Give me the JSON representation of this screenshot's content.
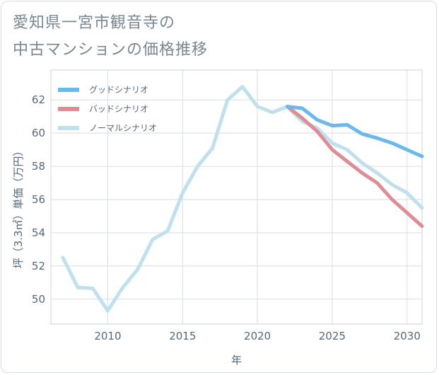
{
  "title_lines": [
    "愛知県一宮市観音寺の",
    "中古マンションの価格推移"
  ],
  "chart_data": {
    "type": "line",
    "xlabel": "年",
    "ylabel": "坪（3.3㎡）単価（万円）",
    "xlim": [
      2006.2,
      2031
    ],
    "ylim": [
      48.5,
      63.8
    ],
    "x_ticks": [
      2010,
      2015,
      2020,
      2025,
      2030
    ],
    "y_ticks": [
      50,
      52,
      54,
      56,
      58,
      60,
      62
    ],
    "legend_position": "top-left",
    "grid": true,
    "series": [
      {
        "name": "グッドシナリオ",
        "color": "#6bb8ea",
        "x": [
          2022,
          2023,
          2024,
          2025,
          2026,
          2027,
          2028,
          2029,
          2030,
          2031
        ],
        "y": [
          61.6,
          61.5,
          60.8,
          60.45,
          60.5,
          59.95,
          59.7,
          59.4,
          59.0,
          58.6
        ]
      },
      {
        "name": "バッドシナリオ",
        "color": "#de8d94",
        "x": [
          2022,
          2023,
          2024,
          2025,
          2026,
          2027,
          2028,
          2029,
          2030,
          2031
        ],
        "y": [
          61.6,
          60.9,
          60.1,
          59.0,
          58.3,
          57.6,
          57.0,
          56.0,
          55.2,
          54.4
        ]
      },
      {
        "name": "ノーマルシナリオ",
        "color": "#bfe0ec",
        "x": [
          2007,
          2008,
          2009,
          2010,
          2011,
          2012,
          2013,
          2014,
          2015,
          2016,
          2017,
          2018,
          2019,
          2020,
          2021,
          2022,
          2023,
          2024,
          2025,
          2026,
          2027,
          2028,
          2029,
          2030,
          2031
        ],
        "y": [
          52.5,
          50.7,
          50.65,
          49.3,
          50.7,
          51.8,
          53.6,
          54.1,
          56.4,
          58.0,
          59.1,
          62.0,
          62.8,
          61.6,
          61.25,
          61.6,
          60.7,
          60.3,
          59.4,
          59.0,
          58.2,
          57.6,
          56.9,
          56.4,
          55.5
        ]
      }
    ]
  }
}
